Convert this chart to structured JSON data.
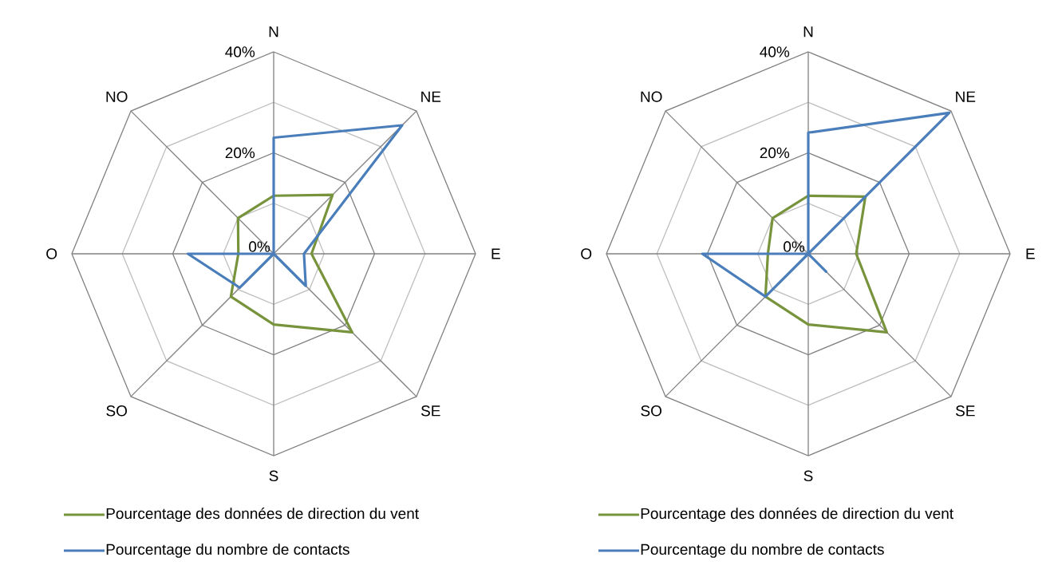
{
  "chart_data": [
    {
      "type": "radar",
      "categories": [
        "N",
        "NE",
        "E",
        "SE",
        "S",
        "SO",
        "O",
        "NO"
      ],
      "ylim": [
        0,
        40
      ],
      "yticks": [
        {
          "value": 0,
          "label": "0%"
        },
        {
          "value": 20,
          "label": "20%"
        },
        {
          "value": 40,
          "label": "40%"
        }
      ],
      "grid": true,
      "legend": "bottom",
      "series": [
        {
          "name": "Pourcentage des données de direction du vent",
          "color": "#77933c",
          "values": [
            11.5,
            16.5,
            7.5,
            22,
            14,
            12,
            7,
            10
          ]
        },
        {
          "name": "Pourcentage du nombre de contacts",
          "color": "#4a7ebb",
          "values": [
            23,
            36,
            6,
            9,
            0,
            9.5,
            17,
            0
          ]
        }
      ]
    },
    {
      "type": "radar",
      "categories": [
        "N",
        "NE",
        "E",
        "SE",
        "S",
        "SO",
        "O",
        "NO"
      ],
      "ylim": [
        0,
        40
      ],
      "yticks": [
        {
          "value": 0,
          "label": "0%"
        },
        {
          "value": 20,
          "label": "20%"
        },
        {
          "value": 40,
          "label": "40%"
        }
      ],
      "grid": true,
      "legend": "bottom",
      "series": [
        {
          "name": "Pourcentage des données de direction du vent",
          "color": "#77933c",
          "values": [
            11.5,
            16,
            9.5,
            22,
            14,
            12,
            8,
            10
          ]
        },
        {
          "name": "Pourcentage du nombre de contacts",
          "color": "#4a7ebb",
          "values": [
            24,
            39.5,
            0,
            5,
            0,
            12,
            21,
            0
          ]
        }
      ]
    }
  ]
}
